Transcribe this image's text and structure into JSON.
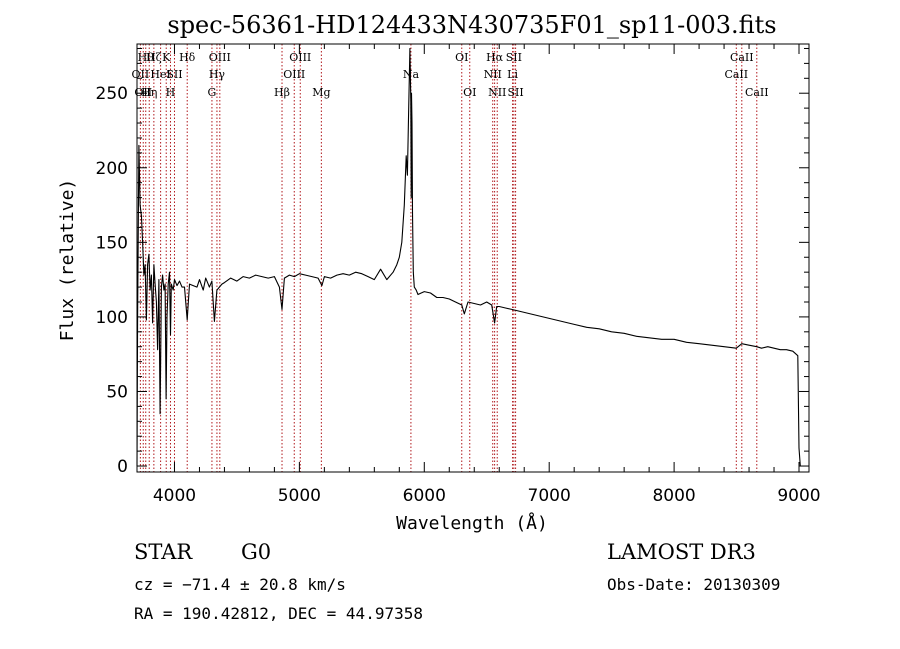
{
  "chart_data": {
    "type": "line",
    "title": "spec-56361-HD124433N430735F01_sp11-003.fits",
    "xlabel": "Wavelength (Å)",
    "ylabel": "Flux (relative)",
    "xlim": [
      3700,
      9080
    ],
    "ylim": [
      -4,
      283
    ],
    "xticks": [
      4000,
      5000,
      6000,
      7000,
      8000,
      9000
    ],
    "yticks": [
      0,
      50,
      100,
      150,
      200,
      250
    ],
    "series": [
      {
        "name": "flux",
        "x": [
          3690,
          3705,
          3715,
          3725,
          3735,
          3745,
          3755,
          3765,
          3775,
          3785,
          3795,
          3805,
          3815,
          3825,
          3835,
          3845,
          3855,
          3865,
          3875,
          3885,
          3895,
          3905,
          3915,
          3925,
          3933,
          3940,
          3950,
          3960,
          3968,
          3975,
          3990,
          4000,
          4020,
          4040,
          4060,
          4080,
          4102,
          4120,
          4150,
          4180,
          4200,
          4230,
          4250,
          4280,
          4300,
          4320,
          4340,
          4360,
          4380,
          4400,
          4450,
          4500,
          4550,
          4600,
          4650,
          4700,
          4750,
          4800,
          4840,
          4861,
          4880,
          4920,
          4960,
          5000,
          5050,
          5100,
          5150,
          5180,
          5200,
          5250,
          5300,
          5350,
          5400,
          5450,
          5500,
          5550,
          5600,
          5650,
          5700,
          5750,
          5780,
          5800,
          5820,
          5840,
          5855,
          5865,
          5875,
          5885,
          5892,
          5895,
          5898,
          5902,
          5906,
          5912,
          5920,
          5935,
          5950,
          5975,
          6000,
          6050,
          6100,
          6150,
          6200,
          6250,
          6300,
          6320,
          6350,
          6400,
          6450,
          6500,
          6540,
          6563,
          6580,
          6600,
          6650,
          6700,
          6750,
          6800,
          6900,
          7000,
          7100,
          7200,
          7300,
          7400,
          7500,
          7600,
          7700,
          7800,
          7900,
          8000,
          8100,
          8200,
          8300,
          8400,
          8498,
          8542,
          8600,
          8662,
          8700,
          8750,
          8800,
          8850,
          8900,
          8950,
          8990,
          9000,
          9010
        ],
        "y": [
          0,
          100,
          215,
          175,
          168,
          150,
          128,
          135,
          98,
          135,
          142,
          118,
          128,
          96,
          135,
          122,
          110,
          78,
          125,
          35,
          120,
          128,
          118,
          122,
          45,
          100,
          122,
          130,
          88,
          122,
          118,
          125,
          121,
          124,
          120,
          120,
          98,
          122,
          121,
          120,
          125,
          118,
          126,
          120,
          124,
          97,
          118,
          120,
          122,
          123,
          126,
          124,
          127,
          126,
          128,
          127,
          126,
          127,
          120,
          105,
          126,
          128,
          127,
          129,
          128,
          127,
          126,
          121,
          127,
          126,
          128,
          129,
          128,
          130,
          129,
          127,
          125,
          132,
          125,
          130,
          135,
          140,
          150,
          175,
          208,
          195,
          240,
          280,
          245,
          180,
          250,
          230,
          170,
          130,
          120,
          118,
          115,
          116,
          117,
          116,
          113,
          113,
          112,
          110,
          108,
          102,
          110,
          109,
          108,
          110,
          108,
          96,
          107,
          107,
          106,
          105,
          104,
          103,
          101,
          99,
          97,
          95,
          93,
          92,
          90,
          89,
          87,
          86,
          85,
          85,
          83,
          82,
          81,
          80,
          79,
          82,
          81,
          80,
          79,
          80,
          79,
          78,
          78,
          77,
          74,
          12,
          0
        ]
      }
    ],
    "lines": [
      {
        "wl": 3727,
        "label": "OII",
        "row": 2
      },
      {
        "wl": 3750,
        "label": "OII",
        "row": 3
      },
      {
        "wl": 3770,
        "label": "Hθ",
        "row": 1
      },
      {
        "wl": 3798,
        "label": "Hη",
        "row": 3
      },
      {
        "wl": 3835,
        "label": "Hζ",
        "row": 1
      },
      {
        "wl": 3889,
        "label": "HeI",
        "row": 2
      },
      {
        "wl": 3934,
        "label": "K",
        "row": 1
      },
      {
        "wl": 3968,
        "label": "H",
        "row": 3
      },
      {
        "wl": 4000,
        "label": "SII",
        "row": 2
      },
      {
        "wl": 4102,
        "label": "Hδ",
        "row": 1
      },
      {
        "wl": 4300,
        "label": "G",
        "row": 3
      },
      {
        "wl": 4340,
        "label": "Hγ",
        "row": 2
      },
      {
        "wl": 4363,
        "label": "OIII",
        "row": 1
      },
      {
        "wl": 4861,
        "label": "Hβ",
        "row": 3
      },
      {
        "wl": 4959,
        "label": "OIII",
        "row": 2
      },
      {
        "wl": 5007,
        "label": "OIII",
        "row": 1
      },
      {
        "wl": 5176,
        "label": "Mg",
        "row": 3
      },
      {
        "wl": 5893,
        "label": "Na",
        "row": 2
      },
      {
        "wl": 6300,
        "label": "OI",
        "row": 1
      },
      {
        "wl": 6364,
        "label": "OI",
        "row": 3
      },
      {
        "wl": 6548,
        "label": "NII",
        "row": 2
      },
      {
        "wl": 6563,
        "label": "Hα",
        "row": 1
      },
      {
        "wl": 6584,
        "label": "NII",
        "row": 3
      },
      {
        "wl": 6707,
        "label": "Li",
        "row": 2
      },
      {
        "wl": 6717,
        "label": "SII",
        "row": 1
      },
      {
        "wl": 6731,
        "label": "SII",
        "row": 3
      },
      {
        "wl": 8498,
        "label": "CaII",
        "row": 2
      },
      {
        "wl": 8542,
        "label": "CaII",
        "row": 1
      },
      {
        "wl": 8662,
        "label": "CaII",
        "row": 3
      }
    ]
  },
  "info": {
    "class": "STAR",
    "subclass": "G0",
    "survey": "LAMOST DR3",
    "cz": "cz = −71.4 ± 20.8 km/s",
    "obs_date": "Obs-Date: 20130309",
    "coords": "RA = 190.42812, DEC =  44.97358"
  }
}
